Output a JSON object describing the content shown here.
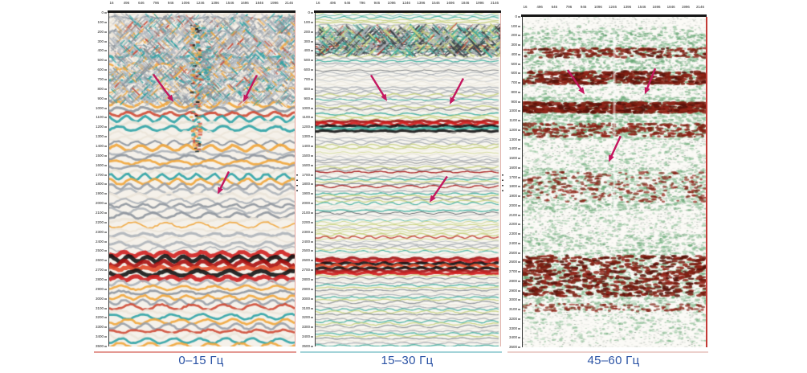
{
  "figure": {
    "background": "#ffffff",
    "caption_color": "#2b53a5",
    "arrow_color": "#c4175f",
    "axis_text_color": "#222222"
  },
  "chart_data": {
    "type": "heatmap",
    "x_ticks": [
      "16",
      "496",
      "646",
      "796",
      "946",
      "1096",
      "1246",
      "1396",
      "1546",
      "1696",
      "1846",
      "1996",
      "2146"
    ],
    "x_range": [
      16,
      2146
    ],
    "y_ticks": [
      "0",
      "100",
      "200",
      "300",
      "400",
      "500",
      "600",
      "700",
      "800",
      "900",
      "1000",
      "1100",
      "1200",
      "1300",
      "1400",
      "1500",
      "1600",
      "1700",
      "1800",
      "1900",
      "2000",
      "2100",
      "2200",
      "2300",
      "2400",
      "2500",
      "2600",
      "2700",
      "2800",
      "2900",
      "3000",
      "3100",
      "3200",
      "3300",
      "3400",
      "3500"
    ],
    "y_range": [
      0,
      3500
    ],
    "panels": [
      {
        "caption": "0–15 Гц",
        "annotations": {
          "arrows": [
            {
              "from": [
                532,
                645
              ],
              "to": [
                763,
                934
              ]
            },
            {
              "from": [
                1721,
                654
              ],
              "to": [
                1565,
                934
              ]
            },
            {
              "from": [
                1399,
                1665
              ],
              "to": [
                1270,
                1903
              ]
            }
          ]
        },
        "strong_reflectors_ms": [
          [
            2520,
            2820
          ]
        ],
        "colorful_zones_ms": [
          [
            950,
            1250
          ],
          [
            1550,
            1850
          ],
          [
            2980,
            3500
          ]
        ],
        "style": {
          "mode": "wiggle",
          "bg": "#f5f1ea",
          "rowStep": 6,
          "lw": 2.3,
          "amp": 2.4,
          "wl": 30,
          "jit": 1.6,
          "base": [
            [
              "#aeb4ba",
              5
            ],
            [
              "#8f969e",
              3
            ],
            [
              "#ece5da",
              3
            ],
            [
              "#f1d9d4",
              2
            ],
            [
              "#2fa3a6",
              1.5
            ],
            [
              "#f1a63c",
              1.2
            ],
            [
              "#cf4a35",
              0.55
            ]
          ],
          "bands": [
            {
              "t0": 950,
              "t1": 1250,
              "colors": [
                "#2fa3a6",
                "#f1a63c",
                "#8f969e",
                "#cf4a35",
                "#2fa3a6",
                "#e8e2d6"
              ],
              "lw": 3
            },
            {
              "t0": 1550,
              "t1": 1850,
              "colors": [
                "#2fa3a6",
                "#f1a63c",
                "#9aa0a8",
                "#e8e2d6"
              ],
              "lw": 2.8
            },
            {
              "t0": 2520,
              "t1": 2820,
              "colors": [
                "#141414",
                "#cf1f1f",
                "#141414",
                "#a80f0f",
                "#e24a2a"
              ],
              "lw": 5
            },
            {
              "t0": 2860,
              "t1": 2960,
              "colors": [
                "#2fa3a6",
                "#f1a63c",
                "#8f969e"
              ],
              "lw": 2.6
            },
            {
              "t0": 2980,
              "t1": 3500,
              "colors": [
                "#2fa3a6",
                "#f1a63c",
                "#9aa0a8",
                "#cf4a35",
                "#ece5da"
              ],
              "lw": 2.7
            }
          ],
          "hatch": {
            "t0": 30,
            "t1": 950,
            "n": 2400,
            "colors": [
              [
                "#b6bcc3",
                5
              ],
              [
                "#8f969e",
                3
              ],
              [
                "#2fa3a6",
                1.5
              ],
              [
                "#f1a63c",
                1.1
              ],
              [
                "#cf4a35",
                0.5
              ],
              [
                "#e9e2d6",
                2
              ]
            ]
          },
          "columns": [
            {
              "rel": 0.46,
              "t0": 120,
              "t1": 1450,
              "n": 150,
              "colors": [
                [
                  "#2fa3a6",
                  2
                ],
                [
                  "#f1a63c",
                  2
                ],
                [
                  "#cf4a35",
                  1
                ],
                [
                  "#141414",
                  0.7
                ]
              ]
            },
            {
              "rel": 0.52,
              "t0": 120,
              "t1": 900,
              "n": 70,
              "colors": [
                [
                  "#8f969e",
                  2
                ],
                [
                  "#2fa3a6",
                  1
                ]
              ]
            }
          ]
        }
      },
      {
        "caption": "15–30 Гц",
        "annotations": {
          "arrows": [
            {
              "from": [
                664,
                654
              ],
              "to": [
                849,
                926
              ]
            },
            {
              "from": [
                1729,
                688
              ],
              "to": [
                1571,
                960
              ]
            },
            {
              "from": [
                1543,
                1716
              ],
              "to": [
                1340,
                1988
              ]
            }
          ]
        },
        "strong_reflectors_ms": [
          [
            1120,
            1255
          ],
          [
            2560,
            2745
          ]
        ],
        "colorful_zones_ms": [
          [
            230,
            430
          ],
          [
            980,
            1110
          ],
          [
            1600,
            1950
          ],
          [
            2750,
            3500
          ]
        ],
        "style": {
          "mode": "wiggle",
          "bg": "#f8f6f0",
          "rowStep": 3,
          "lw": 1.05,
          "amp": 1.1,
          "wl": 26,
          "jit": 0.9,
          "base": [
            [
              "#a8aeb4",
              5
            ],
            [
              "#c6d27f",
              2.4
            ],
            [
              "#3fae9e",
              2.1
            ],
            [
              "#e7e3d8",
              2.2
            ],
            [
              "#4a4f55",
              0.8
            ],
            [
              "#c0392b",
              0.25
            ]
          ],
          "bands": [
            {
              "t0": 230,
              "t1": 430,
              "colors": [
                "#3c4248",
                "#3fae9e",
                "#c6d27f",
                "#a8aeb4",
                "#2f3439",
                "#c0392b"
              ],
              "lw": 1.5
            },
            {
              "t0": 980,
              "t1": 1110,
              "colors": [
                "#3fae9e",
                "#c6d27f",
                "#8a9096",
                "#e7e3d8"
              ],
              "lw": 1.5
            },
            {
              "t0": 1120,
              "t1": 1255,
              "colors": [
                "#141414",
                "#a31515",
                "#cf1b1b",
                "#141414",
                "#3fae9e"
              ],
              "lw": 3.2
            },
            {
              "t0": 1600,
              "t1": 1950,
              "colors": [
                "#3fae9e",
                "#c6d27f",
                "#8a9096",
                "#a31515",
                "#e7e3d8",
                "#a8aeb4"
              ],
              "lw": 1.4
            },
            {
              "t0": 2560,
              "t1": 2745,
              "colors": [
                "#141414",
                "#a31515",
                "#cf1b1b",
                "#141414",
                "#e24a2a"
              ],
              "lw": 3.4
            },
            {
              "t0": 2750,
              "t1": 3500,
              "colors": [
                "#3fae9e",
                "#c6d27f",
                "#8a9096",
                "#e7e3d8",
                "#a8aeb4"
              ],
              "lw": 1.3
            }
          ],
          "hatch": {
            "t0": 150,
            "t1": 430,
            "n": 900,
            "colors": [
              [
                "#3c4248",
                3
              ],
              [
                "#3fae9e",
                2
              ],
              [
                "#c6d27f",
                2
              ],
              [
                "#c0392b",
                0.5
              ],
              [
                "#a8aeb4",
                3
              ]
            ]
          }
        }
      },
      {
        "caption": "45–60 Гц",
        "annotations": {
          "arrows": [
            {
              "from": [
                548,
                563
              ],
              "to": [
                745,
                820
              ]
            },
            {
              "from": [
                1567,
                546
              ],
              "to": [
                1445,
                820
              ]
            },
            {
              "from": [
                1164,
                1263
              ],
              "to": [
                1025,
                1537
              ]
            }
          ]
        },
        "amplitude_zones_ms": [
          [
            330,
            430
          ],
          [
            580,
            710
          ],
          [
            905,
            1015
          ],
          [
            1130,
            1270
          ],
          [
            1640,
            1960
          ],
          [
            2530,
            2960
          ],
          [
            3040,
            3120
          ]
        ],
        "style": {
          "mode": "speck",
          "bg": "#fbfaf6",
          "rowStep": 2.5,
          "base": [
            [
              "#cdd2cc",
              5
            ],
            [
              "#b2bcb2",
              3
            ],
            [
              "#e8eae4",
              4
            ],
            [
              "#86b58e",
              1.6
            ],
            [
              "#9aa59a",
              2
            ]
          ],
          "blobs": [
            {
              "t0": 100,
              "t1": 3450,
              "n": 2200,
              "colors": [
                [
                  "#7ab787",
                  3
                ],
                [
                  "#57a067",
                  2
                ],
                [
                  "#9cc8a3",
                  2
                ]
              ],
              "w": [
                2.5,
                7
              ],
              "h": [
                1.5,
                3.2
              ],
              "a": 0.45
            },
            {
              "t0": 150,
              "t1": 700,
              "n": 700,
              "colors": [
                [
                  "#6fb07d",
                  3
                ],
                [
                  "#4f9660",
                  2
                ]
              ],
              "w": [
                2.5,
                6
              ],
              "h": [
                1.5,
                3
              ],
              "a": 0.5
            },
            {
              "t0": 850,
              "t1": 1300,
              "n": 800,
              "colors": [
                [
                  "#6fb07d",
                  3
                ],
                [
                  "#4f9660",
                  2
                ],
                [
                  "#9cc8a3",
                  2
                ]
              ],
              "w": [
                3,
                8
              ],
              "h": [
                1.5,
                3.2
              ],
              "a": 0.5
            },
            {
              "t0": 1600,
              "t1": 2050,
              "n": 500,
              "colors": [
                [
                  "#6fb07d",
                  3
                ],
                [
                  "#4f9660",
                  2
                ]
              ],
              "w": [
                3,
                7
              ],
              "h": [
                1.5,
                3
              ],
              "a": 0.45
            },
            {
              "t0": 2300,
              "t1": 3100,
              "n": 700,
              "colors": [
                [
                  "#6fb07d",
                  3
                ],
                [
                  "#4f9660",
                  2
                ]
              ],
              "w": [
                3,
                7
              ],
              "h": [
                1.5,
                3
              ],
              "a": 0.45
            },
            {
              "t0": 330,
              "t1": 430,
              "n": 200,
              "colors": [
                [
                  "#7c1f12",
                  3
                ],
                [
                  "#93261a",
                  2
                ],
                [
                  "#58130b",
                  1.5
                ]
              ],
              "w": [
                3,
                9
              ],
              "h": [
                2,
                3.6
              ],
              "a": 0.8
            },
            {
              "t0": 580,
              "t1": 710,
              "n": 380,
              "colors": [
                [
                  "#7c1f12",
                  3
                ],
                [
                  "#93261a",
                  2
                ],
                [
                  "#58130b",
                  2
                ]
              ],
              "w": [
                4,
                10
              ],
              "h": [
                2.2,
                4
              ],
              "a": 0.85
            },
            {
              "t0": 905,
              "t1": 1015,
              "n": 480,
              "colors": [
                [
                  "#7c1f12",
                  3
                ],
                [
                  "#93261a",
                  2
                ],
                [
                  "#58130b",
                  2
                ]
              ],
              "w": [
                4,
                11
              ],
              "h": [
                2.2,
                4
              ],
              "a": 0.85
            },
            {
              "t0": 1130,
              "t1": 1270,
              "n": 260,
              "colors": [
                [
                  "#7c1f12",
                  3
                ],
                [
                  "#93261a",
                  2
                ]
              ],
              "w": [
                3,
                9
              ],
              "h": [
                2,
                3.5
              ],
              "a": 0.8
            },
            {
              "t0": 1640,
              "t1": 1960,
              "n": 260,
              "colors": [
                [
                  "#7c1f12",
                  2
                ],
                [
                  "#93261a",
                  2
                ]
              ],
              "w": [
                3,
                8
              ],
              "h": [
                2,
                3.2
              ],
              "a": 0.7
            },
            {
              "t0": 2530,
              "t1": 2960,
              "n": 620,
              "colors": [
                [
                  "#7c1f12",
                  3
                ],
                [
                  "#93261a",
                  2
                ],
                [
                  "#58130b",
                  2
                ]
              ],
              "w": [
                4,
                10
              ],
              "h": [
                2.2,
                4
              ],
              "a": 0.85
            },
            {
              "t0": 3040,
              "t1": 3120,
              "n": 110,
              "colors": [
                [
                  "#7c1f12",
                  2
                ],
                [
                  "#93261a",
                  2
                ]
              ],
              "w": [
                3,
                8
              ],
              "h": [
                2,
                3
              ],
              "a": 0.7
            }
          ],
          "seam": {
            "rel": 0.5,
            "t0": 150,
            "t1": 2150,
            "w": 3,
            "color": "#ffffff",
            "a": 0.5
          }
        }
      }
    ]
  }
}
